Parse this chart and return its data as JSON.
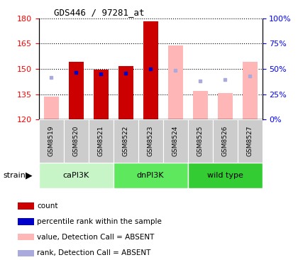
{
  "title": "GDS446 / 97281_at",
  "samples": [
    "GSM8519",
    "GSM8520",
    "GSM8521",
    "GSM8522",
    "GSM8523",
    "GSM8524",
    "GSM8525",
    "GSM8526",
    "GSM8527"
  ],
  "value_absent": [
    133.5,
    null,
    null,
    null,
    null,
    164.0,
    137.0,
    135.5,
    154.0
  ],
  "value_present": [
    null,
    154.0,
    149.5,
    151.5,
    178.0,
    null,
    null,
    null,
    null
  ],
  "rank_absent_y": [
    145.0,
    null,
    null,
    null,
    null,
    149.0,
    143.0,
    143.5,
    146.0
  ],
  "rank_present_y": [
    null,
    148.0,
    147.0,
    147.5,
    150.0,
    null,
    null,
    null,
    null
  ],
  "ylim_left": [
    120,
    180
  ],
  "ylim_right": [
    0,
    100
  ],
  "yticks_left": [
    120,
    135,
    150,
    165,
    180
  ],
  "yticks_right": [
    0,
    25,
    50,
    75,
    100
  ],
  "bar_bottom": 120,
  "bar_width": 0.6,
  "color_absent_bar": "#ffb6b6",
  "color_present_bar": "#cc0000",
  "color_rank_present": "#0000cc",
  "color_rank_absent": "#aaaadd",
  "group_labels": [
    "caPI3K",
    "dnPI3K",
    "wild type"
  ],
  "group_ranges": [
    [
      0,
      2
    ],
    [
      3,
      5
    ],
    [
      6,
      8
    ]
  ],
  "group_colors": [
    "#c8f5c8",
    "#5de85d",
    "#33cc33"
  ],
  "legend_items": [
    {
      "color": "#cc0000",
      "label": "count"
    },
    {
      "color": "#0000cc",
      "label": "percentile rank within the sample"
    },
    {
      "color": "#ffb6b6",
      "label": "value, Detection Call = ABSENT"
    },
    {
      "color": "#aaaadd",
      "label": "rank, Detection Call = ABSENT"
    }
  ]
}
